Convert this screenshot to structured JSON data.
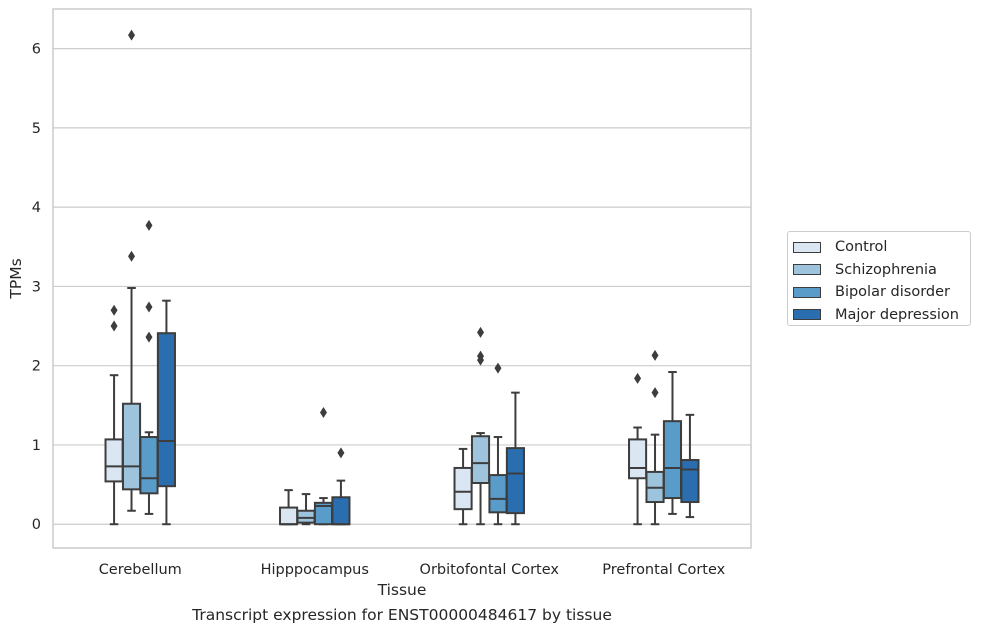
{
  "caption": "Transcript expression for ENST00000484617 by tissue",
  "chart_data": {
    "type": "box",
    "xlabel": "Tissue",
    "ylabel": "TPMs",
    "ylim": [
      -0.3,
      6.5
    ],
    "yticks": [
      0,
      1,
      2,
      3,
      4,
      5,
      6
    ],
    "grid": "horizontal",
    "legend_position": "right",
    "categories": [
      "Cerebellum",
      "Hipppocampus",
      "Orbitofontal Cortex",
      "Prefrontal Cortex"
    ],
    "series": [
      {
        "name": "Control",
        "color": "#dae6f2",
        "boxes": [
          {
            "whislo": 0.0,
            "q1": 0.54,
            "med": 0.73,
            "q3": 1.07,
            "whishi": 1.88,
            "fliers": [
              2.5,
              2.7
            ]
          },
          {
            "whislo": 0.0,
            "q1": 0.0,
            "med": 0.0,
            "q3": 0.21,
            "whishi": 0.43,
            "fliers": []
          },
          {
            "whislo": 0.0,
            "q1": 0.19,
            "med": 0.41,
            "q3": 0.71,
            "whishi": 0.95,
            "fliers": []
          },
          {
            "whislo": 0.0,
            "q1": 0.58,
            "med": 0.71,
            "q3": 1.07,
            "whishi": 1.22,
            "fliers": [
              1.84
            ]
          }
        ]
      },
      {
        "name": "Schizophrenia",
        "color": "#9ec3dc",
        "boxes": [
          {
            "whislo": 0.17,
            "q1": 0.44,
            "med": 0.73,
            "q3": 1.52,
            "whishi": 2.98,
            "fliers": [
              3.38,
              6.17
            ]
          },
          {
            "whislo": 0.0,
            "q1": 0.02,
            "med": 0.08,
            "q3": 0.17,
            "whishi": 0.38,
            "fliers": []
          },
          {
            "whislo": 0.0,
            "q1": 0.52,
            "med": 0.77,
            "q3": 1.11,
            "whishi": 1.15,
            "fliers": [
              2.07,
              2.12,
              2.42
            ]
          },
          {
            "whislo": 0.0,
            "q1": 0.28,
            "med": 0.46,
            "q3": 0.66,
            "whishi": 1.13,
            "fliers": [
              1.66,
              2.13
            ]
          }
        ]
      },
      {
        "name": "Bipolar disorder",
        "color": "#5a9cc9",
        "boxes": [
          {
            "whislo": 0.13,
            "q1": 0.39,
            "med": 0.58,
            "q3": 1.1,
            "whishi": 1.16,
            "fliers": [
              2.36,
              2.74,
              3.77
            ]
          },
          {
            "whislo": 0.0,
            "q1": 0.0,
            "med": 0.23,
            "q3": 0.27,
            "whishi": 0.33,
            "fliers": [
              1.41
            ]
          },
          {
            "whislo": 0.0,
            "q1": 0.15,
            "med": 0.32,
            "q3": 0.62,
            "whishi": 1.1,
            "fliers": [
              1.97
            ]
          },
          {
            "whislo": 0.13,
            "q1": 0.33,
            "med": 0.71,
            "q3": 1.3,
            "whishi": 1.92,
            "fliers": []
          }
        ]
      },
      {
        "name": "Major depression",
        "color": "#2a6eb0",
        "boxes": [
          {
            "whislo": 0.0,
            "q1": 0.48,
            "med": 1.05,
            "q3": 2.41,
            "whishi": 2.82,
            "fliers": []
          },
          {
            "whislo": 0.0,
            "q1": 0.0,
            "med": 0.0,
            "q3": 0.34,
            "whishi": 0.55,
            "fliers": [
              0.9
            ]
          },
          {
            "whislo": 0.0,
            "q1": 0.14,
            "med": 0.64,
            "q3": 0.96,
            "whishi": 1.66,
            "fliers": []
          },
          {
            "whislo": 0.09,
            "q1": 0.28,
            "med": 0.69,
            "q3": 0.81,
            "whishi": 1.38,
            "fliers": []
          }
        ]
      }
    ]
  }
}
